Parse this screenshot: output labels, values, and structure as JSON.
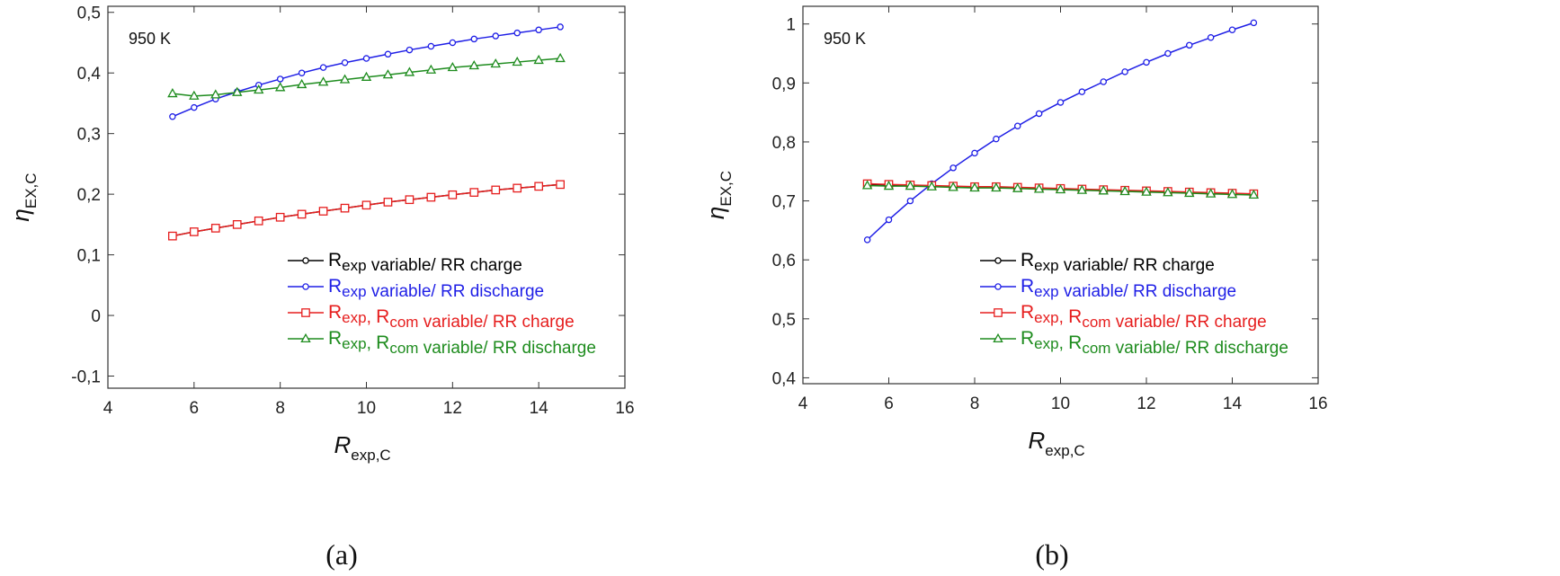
{
  "chart_data": [
    {
      "panel_caption": "(a)",
      "type": "line",
      "annotation": "950 K",
      "xlabel": {
        "main": "R",
        "sub": "exp,C"
      },
      "ylabel": {
        "main": "η",
        "sub": "EX,C"
      },
      "xlim": [
        4,
        16
      ],
      "ylim": [
        -0.12,
        0.51
      ],
      "xticks": [
        4,
        6,
        8,
        10,
        12,
        14,
        16
      ],
      "xtick_labels": [
        "4",
        "6",
        "8",
        "10",
        "12",
        "14",
        "16"
      ],
      "yticks": [
        -0.1,
        0,
        0.1,
        0.2,
        0.3,
        0.4,
        0.5
      ],
      "ytick_labels": [
        "-0,1",
        "0",
        "0,1",
        "0,2",
        "0,3",
        "0,4",
        "0,5"
      ],
      "grid": false,
      "legend_position": "bottom-right",
      "x": [
        5.5,
        6,
        6.5,
        7,
        7.5,
        8,
        8.5,
        9,
        9.5,
        10,
        10.5,
        11,
        11.5,
        12,
        12.5,
        13,
        13.5,
        14,
        14.5
      ],
      "series": [
        {
          "legend": {
            "parts": [
              [
                "R",
                "exp"
              ]
            ],
            "suffix": "variable/ RR charge"
          },
          "color": "#000000",
          "marker": "circle",
          "values": [
            0.131,
            0.138,
            0.144,
            0.15,
            0.156,
            0.162,
            0.167,
            0.172,
            0.177,
            0.182,
            0.187,
            0.191,
            0.195,
            0.199,
            0.203,
            0.207,
            0.21,
            0.213,
            0.216
          ]
        },
        {
          "legend": {
            "parts": [
              [
                "R",
                "exp"
              ]
            ],
            "suffix": "variable/ RR discharge"
          },
          "color": "#1f1fe6",
          "marker": "circle",
          "values": [
            0.328,
            0.343,
            0.357,
            0.369,
            0.38,
            0.39,
            0.4,
            0.409,
            0.417,
            0.424,
            0.431,
            0.438,
            0.444,
            0.45,
            0.456,
            0.461,
            0.466,
            0.471,
            0.476
          ]
        },
        {
          "legend": {
            "parts": [
              [
                "R",
                "exp"
              ],
              [
                "R",
                "com"
              ]
            ],
            "suffix": "variable/ RR charge"
          },
          "color": "#e61e1e",
          "marker": "square",
          "values": [
            0.131,
            0.138,
            0.144,
            0.15,
            0.156,
            0.162,
            0.167,
            0.172,
            0.177,
            0.182,
            0.187,
            0.191,
            0.195,
            0.199,
            0.203,
            0.207,
            0.21,
            0.213,
            0.216
          ]
        },
        {
          "legend": {
            "parts": [
              [
                "R",
                "exp"
              ],
              [
                "R",
                "com"
              ]
            ],
            "suffix": "variable/ RR discharge"
          },
          "color": "#1e8c1e",
          "marker": "triangle",
          "values": [
            0.366,
            0.362,
            0.364,
            0.368,
            0.372,
            0.376,
            0.381,
            0.385,
            0.389,
            0.393,
            0.397,
            0.401,
            0.405,
            0.409,
            0.412,
            0.415,
            0.418,
            0.421,
            0.424
          ]
        }
      ]
    },
    {
      "panel_caption": "(b)",
      "type": "line",
      "annotation": "950 K",
      "xlabel": {
        "main": "R",
        "sub": "exp,C"
      },
      "ylabel": {
        "main": "η",
        "sub": "EX,C"
      },
      "xlim": [
        4,
        16
      ],
      "ylim": [
        0.39,
        1.03
      ],
      "xticks": [
        4,
        6,
        8,
        10,
        12,
        14,
        16
      ],
      "xtick_labels": [
        "4",
        "6",
        "8",
        "10",
        "12",
        "14",
        "16"
      ],
      "yticks": [
        0.4,
        0.5,
        0.6,
        0.7,
        0.8,
        0.9,
        1.0
      ],
      "ytick_labels": [
        "0,4",
        "0,5",
        "0,6",
        "0,7",
        "0,8",
        "0,9",
        "1"
      ],
      "grid": false,
      "legend_position": "bottom-right",
      "x": [
        5.5,
        6,
        6.5,
        7,
        7.5,
        8,
        8.5,
        9,
        9.5,
        10,
        10.5,
        11,
        11.5,
        12,
        12.5,
        13,
        13.5,
        14,
        14.5
      ],
      "series": [
        {
          "legend": {
            "parts": [
              [
                "R",
                "exp"
              ]
            ],
            "suffix": "variable/ RR charge"
          },
          "color": "#000000",
          "marker": "circle",
          "values": [
            0.728,
            0.727,
            0.726,
            0.725,
            0.724,
            0.723,
            0.723,
            0.722,
            0.721,
            0.72,
            0.719,
            0.718,
            0.717,
            0.716,
            0.715,
            0.714,
            0.713,
            0.712,
            0.711
          ]
        },
        {
          "legend": {
            "parts": [
              [
                "R",
                "exp"
              ]
            ],
            "suffix": "variable/ RR discharge"
          },
          "color": "#1f1fe6",
          "marker": "circle",
          "values": [
            0.634,
            0.668,
            0.7,
            0.729,
            0.756,
            0.781,
            0.805,
            0.827,
            0.848,
            0.867,
            0.885,
            0.902,
            0.919,
            0.935,
            0.95,
            0.964,
            0.977,
            0.99,
            1.002
          ]
        },
        {
          "legend": {
            "parts": [
              [
                "R",
                "exp"
              ],
              [
                "R",
                "com"
              ]
            ],
            "suffix": "variable/ RR charge"
          },
          "color": "#e61e1e",
          "marker": "square",
          "values": [
            0.729,
            0.728,
            0.727,
            0.726,
            0.725,
            0.724,
            0.724,
            0.723,
            0.722,
            0.721,
            0.72,
            0.719,
            0.718,
            0.717,
            0.716,
            0.715,
            0.714,
            0.713,
            0.712
          ]
        },
        {
          "legend": {
            "parts": [
              [
                "R",
                "exp"
              ],
              [
                "R",
                "com"
              ]
            ],
            "suffix": "variable/ RR discharge"
          },
          "color": "#1e8c1e",
          "marker": "triangle",
          "values": [
            0.726,
            0.725,
            0.725,
            0.724,
            0.723,
            0.722,
            0.722,
            0.721,
            0.72,
            0.719,
            0.718,
            0.717,
            0.716,
            0.715,
            0.714,
            0.713,
            0.712,
            0.711,
            0.71
          ]
        }
      ]
    }
  ]
}
